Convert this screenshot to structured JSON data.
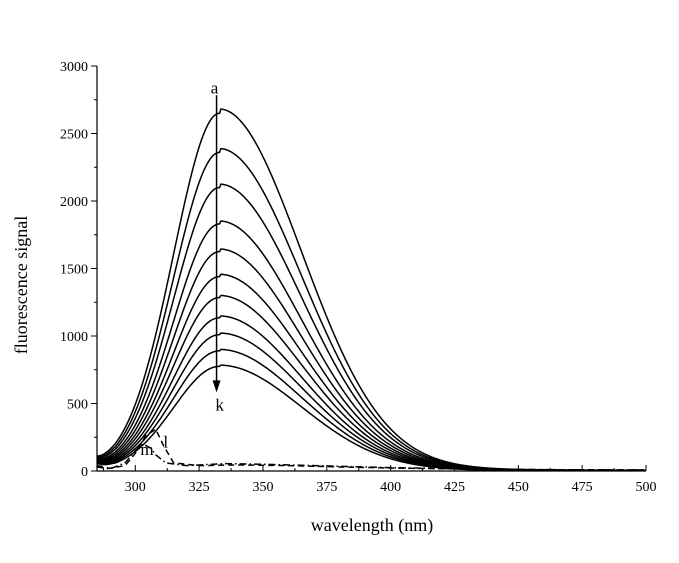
{
  "chart_data": {
    "type": "line",
    "title": "",
    "xlabel": "wavelength (nm)",
    "ylabel": "fluorescence signal",
    "xlim": [
      285,
      500
    ],
    "ylim": [
      0,
      3000
    ],
    "x_ticks": [
      300,
      325,
      350,
      375,
      400,
      425,
      450,
      475,
      500
    ],
    "y_ticks": [
      0,
      500,
      1000,
      1500,
      2000,
      2500,
      3000
    ],
    "grid": false,
    "legend": "none",
    "peak_wavelength": 333,
    "curve_peak_values": [
      2650,
      2360,
      2100,
      1830,
      1625,
      1440,
      1285,
      1135,
      1010,
      890,
      775
    ],
    "series": [
      {
        "name": "a",
        "style": "solid",
        "peak": 2650
      },
      {
        "name": "",
        "style": "solid",
        "peak": 2360
      },
      {
        "name": "",
        "style": "solid",
        "peak": 2100
      },
      {
        "name": "",
        "style": "solid",
        "peak": 1830
      },
      {
        "name": "",
        "style": "solid",
        "peak": 1625
      },
      {
        "name": "",
        "style": "solid",
        "peak": 1440
      },
      {
        "name": "",
        "style": "solid",
        "peak": 1285
      },
      {
        "name": "",
        "style": "solid",
        "peak": 1135
      },
      {
        "name": "",
        "style": "solid",
        "peak": 1010
      },
      {
        "name": "",
        "style": "solid",
        "peak": 890
      },
      {
        "name": "k",
        "style": "solid",
        "peak": 775
      },
      {
        "name": "l",
        "style": "dashed",
        "x": [
          285,
          290,
          296,
          300,
          304,
          308,
          311,
          315,
          325,
          340,
          360,
          380,
          400,
          430,
          460,
          500
        ],
        "y": [
          40,
          20,
          40,
          130,
          260,
          310,
          190,
          60,
          40,
          45,
          40,
          30,
          22,
          15,
          10,
          8
        ]
      },
      {
        "name": "m",
        "style": "dashdot",
        "x": [
          285,
          290,
          296,
          300,
          303,
          306,
          308,
          312,
          320,
          335,
          350,
          370,
          400,
          430,
          460,
          500
        ],
        "y": [
          30,
          15,
          60,
          150,
          200,
          170,
          120,
          60,
          40,
          55,
          50,
          40,
          25,
          15,
          10,
          8
        ]
      }
    ],
    "annotations": {
      "arrow_from": "a",
      "arrow_to": "k",
      "label_top": "a",
      "label_bottom": "k",
      "label_l": "l",
      "label_m": "m"
    }
  },
  "colors": {
    "line": "#000000",
    "background": "#ffffff"
  }
}
